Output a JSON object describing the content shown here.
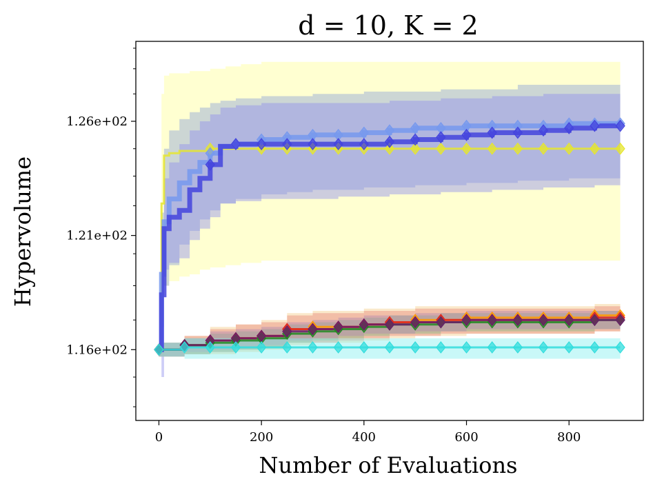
{
  "chart_data": {
    "type": "line",
    "title": "d = 10, K = 2",
    "xlabel": "Number of Evaluations",
    "ylabel": "Hypervolume",
    "xlim": [
      -45,
      945
    ],
    "ylim": [
      112.9,
      129.5
    ],
    "x_ticks": [
      0,
      200,
      400,
      600,
      800
    ],
    "x_tick_labels": [
      "0",
      "200",
      "400",
      "600",
      "800"
    ],
    "y_ticks": [
      116,
      121,
      126
    ],
    "y_tick_labels": [
      "1.16e+02",
      "1.21e+02",
      "1.26e+02"
    ],
    "y_minor_ticks": [
      113.5,
      114.8,
      117.3,
      118.8,
      120.2,
      122.3,
      123.6,
      124.8,
      127.2,
      128.3,
      129.2
    ],
    "grid": false,
    "marker": "diamond",
    "series": [
      {
        "name": "yellow",
        "color": "#e6e62e",
        "band_color": "#ffff99",
        "line_width": 3,
        "x": [
          0,
          5,
          10,
          20,
          40,
          60,
          80,
          100,
          130,
          160,
          200,
          250,
          300,
          350,
          400,
          450,
          500,
          550,
          600,
          650,
          700,
          750,
          800,
          850,
          900
        ],
        "y": [
          116.0,
          122.4,
          124.5,
          124.6,
          124.7,
          124.7,
          124.7,
          124.8,
          124.8,
          124.8,
          124.8,
          124.8,
          124.8,
          124.8,
          124.8,
          124.8,
          124.8,
          124.8,
          124.8,
          124.8,
          124.8,
          124.8,
          124.8,
          124.8,
          124.8
        ],
        "upper": [
          116.3,
          127.2,
          128.0,
          128.1,
          128.1,
          128.2,
          128.2,
          128.3,
          128.4,
          128.5,
          128.6,
          128.6,
          128.6,
          128.6,
          128.6,
          128.6,
          128.6,
          128.6,
          128.6,
          128.6,
          128.6,
          128.6,
          128.6,
          128.6,
          128.6
        ],
        "lower": [
          115.7,
          117.2,
          118.8,
          119.0,
          119.2,
          119.3,
          119.5,
          119.6,
          119.7,
          119.8,
          119.9,
          119.9,
          119.9,
          119.9,
          119.9,
          119.9,
          119.9,
          119.9,
          119.9,
          119.9,
          119.9,
          119.9,
          119.9,
          119.9,
          119.9
        ]
      },
      {
        "name": "light blue",
        "color": "#7799ee",
        "band_color": "#8ea4d8",
        "line_width": 7,
        "x": [
          0,
          5,
          10,
          20,
          40,
          60,
          80,
          100,
          120,
          150,
          200,
          250,
          300,
          350,
          400,
          450,
          500,
          550,
          600,
          650,
          700,
          750,
          800,
          850,
          900
        ],
        "y": [
          116.0,
          119.3,
          121.6,
          122.6,
          123.3,
          123.8,
          124.2,
          124.6,
          124.9,
          125.0,
          125.2,
          125.3,
          125.4,
          125.4,
          125.5,
          125.6,
          125.7,
          125.7,
          125.8,
          125.8,
          125.8,
          125.8,
          125.9,
          125.9,
          125.9
        ],
        "upper": [
          116.2,
          122.0,
          124.8,
          125.6,
          126.1,
          126.4,
          126.6,
          126.8,
          126.9,
          127.0,
          127.1,
          127.1,
          127.2,
          127.2,
          127.3,
          127.3,
          127.3,
          127.4,
          127.4,
          127.4,
          127.6,
          127.6,
          127.6,
          127.6,
          127.6
        ],
        "lower": [
          115.8,
          117.0,
          118.8,
          119.7,
          120.6,
          121.2,
          121.7,
          122.1,
          122.4,
          122.6,
          122.8,
          122.9,
          123.0,
          123.0,
          123.1,
          123.1,
          123.2,
          123.2,
          123.3,
          123.3,
          123.4,
          123.4,
          123.5,
          123.5,
          123.6
        ]
      },
      {
        "name": "blue",
        "color": "#4444dd",
        "band_color": "#9090ee",
        "line_width": 7,
        "x": [
          0,
          5,
          10,
          20,
          40,
          60,
          80,
          100,
          120,
          150,
          200,
          250,
          300,
          350,
          400,
          450,
          500,
          550,
          600,
          650,
          700,
          750,
          800,
          850,
          900
        ],
        "y": [
          116.0,
          118.4,
          121.3,
          121.8,
          122.1,
          123.0,
          123.5,
          124.1,
          124.9,
          125.0,
          125.0,
          125.0,
          125.0,
          125.0,
          125.0,
          125.1,
          125.2,
          125.3,
          125.4,
          125.5,
          125.5,
          125.6,
          125.7,
          125.8,
          125.8
        ],
        "upper": [
          116.2,
          121.0,
          123.5,
          124.2,
          125.0,
          125.6,
          126.0,
          126.3,
          126.6,
          126.7,
          126.8,
          126.8,
          126.8,
          126.8,
          126.8,
          126.9,
          126.9,
          127.0,
          127.0,
          127.1,
          127.1,
          127.2,
          127.2,
          127.2,
          127.2
        ],
        "lower": [
          115.7,
          114.8,
          119.5,
          119.8,
          120.0,
          120.8,
          121.3,
          121.8,
          122.4,
          122.5,
          122.6,
          122.6,
          122.6,
          122.7,
          122.7,
          122.8,
          122.8,
          122.9,
          122.9,
          123.0,
          123.0,
          123.1,
          123.1,
          123.2,
          123.2
        ]
      },
      {
        "name": "orange",
        "color": "#ff9900",
        "band_color": "#f5cf8c",
        "line_width": 3,
        "x": [
          0,
          50,
          100,
          150,
          200,
          250,
          300,
          350,
          400,
          450,
          500,
          550,
          600,
          650,
          700,
          750,
          800,
          850,
          900
        ],
        "y": [
          116.0,
          116.2,
          116.4,
          116.5,
          116.6,
          116.9,
          117.0,
          117.0,
          117.1,
          117.2,
          117.3,
          117.3,
          117.4,
          117.4,
          117.4,
          117.4,
          117.4,
          117.5,
          117.5
        ],
        "upper": [
          116.3,
          116.6,
          117.0,
          117.1,
          117.3,
          117.6,
          117.7,
          117.7,
          117.8,
          117.8,
          117.9,
          117.9,
          117.9,
          117.9,
          117.9,
          117.9,
          117.9,
          118.0,
          118.0
        ],
        "lower": [
          115.7,
          115.8,
          115.8,
          115.9,
          116.0,
          116.2,
          116.3,
          116.3,
          116.4,
          116.5,
          116.6,
          116.6,
          116.7,
          116.7,
          116.7,
          116.7,
          116.7,
          116.8,
          116.8
        ]
      },
      {
        "name": "red",
        "color": "#dd2222",
        "band_color": "#e88a7c",
        "line_width": 3,
        "x": [
          0,
          50,
          100,
          150,
          200,
          250,
          300,
          350,
          400,
          450,
          500,
          550,
          600,
          650,
          700,
          750,
          800,
          850,
          900
        ],
        "y": [
          116.0,
          116.2,
          116.4,
          116.5,
          116.6,
          116.9,
          116.9,
          117.0,
          117.1,
          117.2,
          117.2,
          117.3,
          117.3,
          117.3,
          117.3,
          117.3,
          117.3,
          117.4,
          117.4
        ],
        "upper": [
          116.3,
          116.6,
          116.9,
          117.1,
          117.2,
          117.5,
          117.6,
          117.6,
          117.7,
          117.7,
          117.8,
          117.8,
          117.8,
          117.8,
          117.8,
          117.8,
          117.8,
          117.9,
          117.9
        ],
        "lower": [
          115.7,
          115.8,
          115.9,
          116.0,
          116.1,
          116.3,
          116.3,
          116.4,
          116.5,
          116.6,
          116.6,
          116.7,
          116.7,
          116.7,
          116.7,
          116.7,
          116.7,
          116.8,
          116.8
        ]
      },
      {
        "name": "green",
        "color": "#228822",
        "band_color": "#88b888",
        "line_width": 3,
        "x": [
          0,
          50,
          100,
          150,
          200,
          250,
          300,
          350,
          400,
          450,
          500,
          550,
          600,
          650,
          700,
          750,
          800,
          850,
          900
        ],
        "y": [
          116.0,
          116.2,
          116.3,
          116.4,
          116.5,
          116.7,
          116.8,
          116.9,
          117.0,
          117.1,
          117.1,
          117.2,
          117.2,
          117.2,
          117.2,
          117.2,
          117.2,
          117.3,
          117.3
        ],
        "upper": [
          116.3,
          116.5,
          116.7,
          116.8,
          116.9,
          117.1,
          117.2,
          117.3,
          117.4,
          117.5,
          117.5,
          117.6,
          117.6,
          117.6,
          117.6,
          117.6,
          117.6,
          117.7,
          117.7
        ],
        "lower": [
          115.7,
          115.8,
          115.9,
          116.0,
          116.1,
          116.3,
          116.4,
          116.5,
          116.6,
          116.7,
          116.7,
          116.8,
          116.8,
          116.8,
          116.8,
          116.8,
          116.8,
          116.9,
          116.9
        ]
      },
      {
        "name": "purple",
        "color": "#6a1b6a",
        "band_color": "#b28ab2",
        "line_width": 3,
        "x": [
          0,
          50,
          100,
          150,
          200,
          250,
          300,
          350,
          400,
          450,
          500,
          550,
          600,
          650,
          700,
          750,
          800,
          850,
          900
        ],
        "y": [
          116.0,
          116.2,
          116.4,
          116.5,
          116.6,
          116.8,
          116.9,
          117.0,
          117.1,
          117.1,
          117.2,
          117.2,
          117.3,
          117.3,
          117.3,
          117.3,
          117.3,
          117.3,
          117.3
        ],
        "upper": [
          116.3,
          116.5,
          116.8,
          116.9,
          117.0,
          117.2,
          117.3,
          117.4,
          117.5,
          117.5,
          117.6,
          117.6,
          117.7,
          117.7,
          117.7,
          117.7,
          117.7,
          117.7,
          117.7
        ],
        "lower": [
          115.7,
          115.9,
          116.0,
          116.1,
          116.2,
          116.4,
          116.5,
          116.6,
          116.7,
          116.7,
          116.8,
          116.8,
          116.9,
          116.9,
          116.9,
          116.9,
          116.9,
          116.9,
          116.9
        ]
      },
      {
        "name": "cyan",
        "color": "#33dddd",
        "band_color": "#88f0f0",
        "line_width": 3,
        "x": [
          0,
          50,
          100,
          150,
          200,
          250,
          300,
          350,
          400,
          450,
          500,
          550,
          600,
          650,
          700,
          750,
          800,
          850,
          900
        ],
        "y": [
          116.0,
          116.1,
          116.1,
          116.1,
          116.1,
          116.1,
          116.1,
          116.1,
          116.1,
          116.1,
          116.1,
          116.1,
          116.1,
          116.1,
          116.1,
          116.1,
          116.1,
          116.1,
          116.1
        ],
        "upper": [
          116.3,
          116.5,
          116.5,
          116.5,
          116.5,
          116.5,
          116.5,
          116.5,
          116.5,
          116.5,
          116.5,
          116.5,
          116.5,
          116.5,
          116.5,
          116.5,
          116.5,
          116.5,
          116.5
        ],
        "lower": [
          115.7,
          115.6,
          115.6,
          115.6,
          115.6,
          115.6,
          115.6,
          115.6,
          115.6,
          115.6,
          115.6,
          115.6,
          115.6,
          115.6,
          115.6,
          115.6,
          115.6,
          115.6,
          115.6
        ]
      }
    ]
  }
}
